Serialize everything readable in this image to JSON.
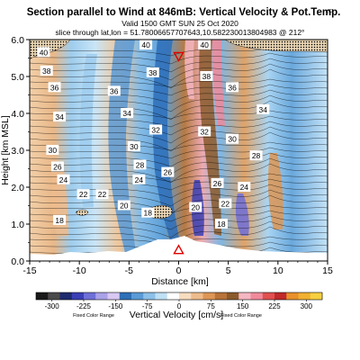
{
  "chart_data": {
    "type": "heatmap",
    "title": "Section parallel to Wind at 846mB: Vertical Velocity & Pot.Temp.",
    "copyright_mark": "(C)",
    "subtitle_line1": "Valid 1500 GMT SUN 25 Oct 2020",
    "subtitle_line2": "slice through lat,lon = 51.78006657707643,10.582230013804983 @ 212°",
    "xlabel": "Distance [km]",
    "ylabel": "Height [km MSL]",
    "xlim": [
      -15,
      15
    ],
    "ylim": [
      0,
      6
    ],
    "x_ticks": [
      -15,
      -10,
      -5,
      0,
      5,
      10,
      15
    ],
    "y_ticks": [
      0.0,
      1.0,
      2.0,
      3.0,
      4.0,
      5.0,
      6.0
    ],
    "grid": false,
    "colorbar": {
      "label": "Vertical Velocity [cm/s]",
      "note_left": "Fixed Color Range",
      "note_right": "Fixed Color Range",
      "ticks": [
        -300,
        -225,
        -150,
        -75,
        0,
        75,
        150,
        225,
        300
      ],
      "colors": [
        "#1a1a1a",
        "#4a4a4a",
        "#1e2a6e",
        "#3a3fb5",
        "#6f6fd8",
        "#a9a2e8",
        "#d8c8f2",
        "#2e6fb8",
        "#5a9ad6",
        "#8cc0e8",
        "#bfe0f5",
        "#ffffff",
        "#f7dcc0",
        "#eebb8c",
        "#dd9655",
        "#b8733a",
        "#8b5a2b",
        "#f4b6c2",
        "#f08a9a",
        "#e05050",
        "#c02a2a",
        "#e8902a",
        "#f0b030",
        "#f6d040"
      ]
    },
    "theta_labels": [
      {
        "x": -13.6,
        "y": 5.65,
        "text": "40"
      },
      {
        "x": -13.3,
        "y": 5.15,
        "text": "38"
      },
      {
        "x": -12.5,
        "y": 4.7,
        "text": "36"
      },
      {
        "x": -12.0,
        "y": 3.9,
        "text": "34"
      },
      {
        "x": -12.7,
        "y": 3.0,
        "text": "30"
      },
      {
        "x": -12.2,
        "y": 2.55,
        "text": "26"
      },
      {
        "x": -11.6,
        "y": 2.2,
        "text": "24"
      },
      {
        "x": -9.6,
        "y": 1.8,
        "text": "22"
      },
      {
        "x": -7.7,
        "y": 1.8,
        "text": "22"
      },
      {
        "x": -12.0,
        "y": 1.1,
        "text": "18"
      },
      {
        "x": -6.5,
        "y": 4.6,
        "text": "36"
      },
      {
        "x": -5.2,
        "y": 4.0,
        "text": "34"
      },
      {
        "x": -4.5,
        "y": 3.1,
        "text": "30"
      },
      {
        "x": -3.9,
        "y": 2.6,
        "text": "28"
      },
      {
        "x": -4.0,
        "y": 2.2,
        "text": "24"
      },
      {
        "x": -5.5,
        "y": 1.5,
        "text": "20"
      },
      {
        "x": -3.1,
        "y": 1.3,
        "text": "18"
      },
      {
        "x": -2.3,
        "y": 3.55,
        "text": "32"
      },
      {
        "x": -1.1,
        "y": 2.4,
        "text": "26"
      },
      {
        "x": -3.3,
        "y": 5.85,
        "text": "40"
      },
      {
        "x": -2.6,
        "y": 5.1,
        "text": "38"
      },
      {
        "x": 1.7,
        "y": 1.45,
        "text": "20"
      },
      {
        "x": 2.6,
        "y": 5.85,
        "text": "40"
      },
      {
        "x": 2.8,
        "y": 5.0,
        "text": "38"
      },
      {
        "x": 2.6,
        "y": 3.5,
        "text": "32"
      },
      {
        "x": 3.9,
        "y": 2.1,
        "text": "26"
      },
      {
        "x": 5.4,
        "y": 4.7,
        "text": "36"
      },
      {
        "x": 5.4,
        "y": 3.3,
        "text": "30"
      },
      {
        "x": 4.7,
        "y": 1.55,
        "text": "22"
      },
      {
        "x": 4.3,
        "y": 1.0,
        "text": "18"
      },
      {
        "x": 8.5,
        "y": 4.1,
        "text": "34"
      },
      {
        "x": 7.8,
        "y": 2.85,
        "text": "28"
      },
      {
        "x": 6.6,
        "y": 2.0,
        "text": "24"
      }
    ],
    "markers": [
      {
        "type": "triangle-down",
        "x": 0,
        "y": 5.55,
        "color": "#e00000"
      },
      {
        "type": "triangle-up",
        "x": 0,
        "y": 0.3,
        "color": "#e00000"
      }
    ]
  }
}
